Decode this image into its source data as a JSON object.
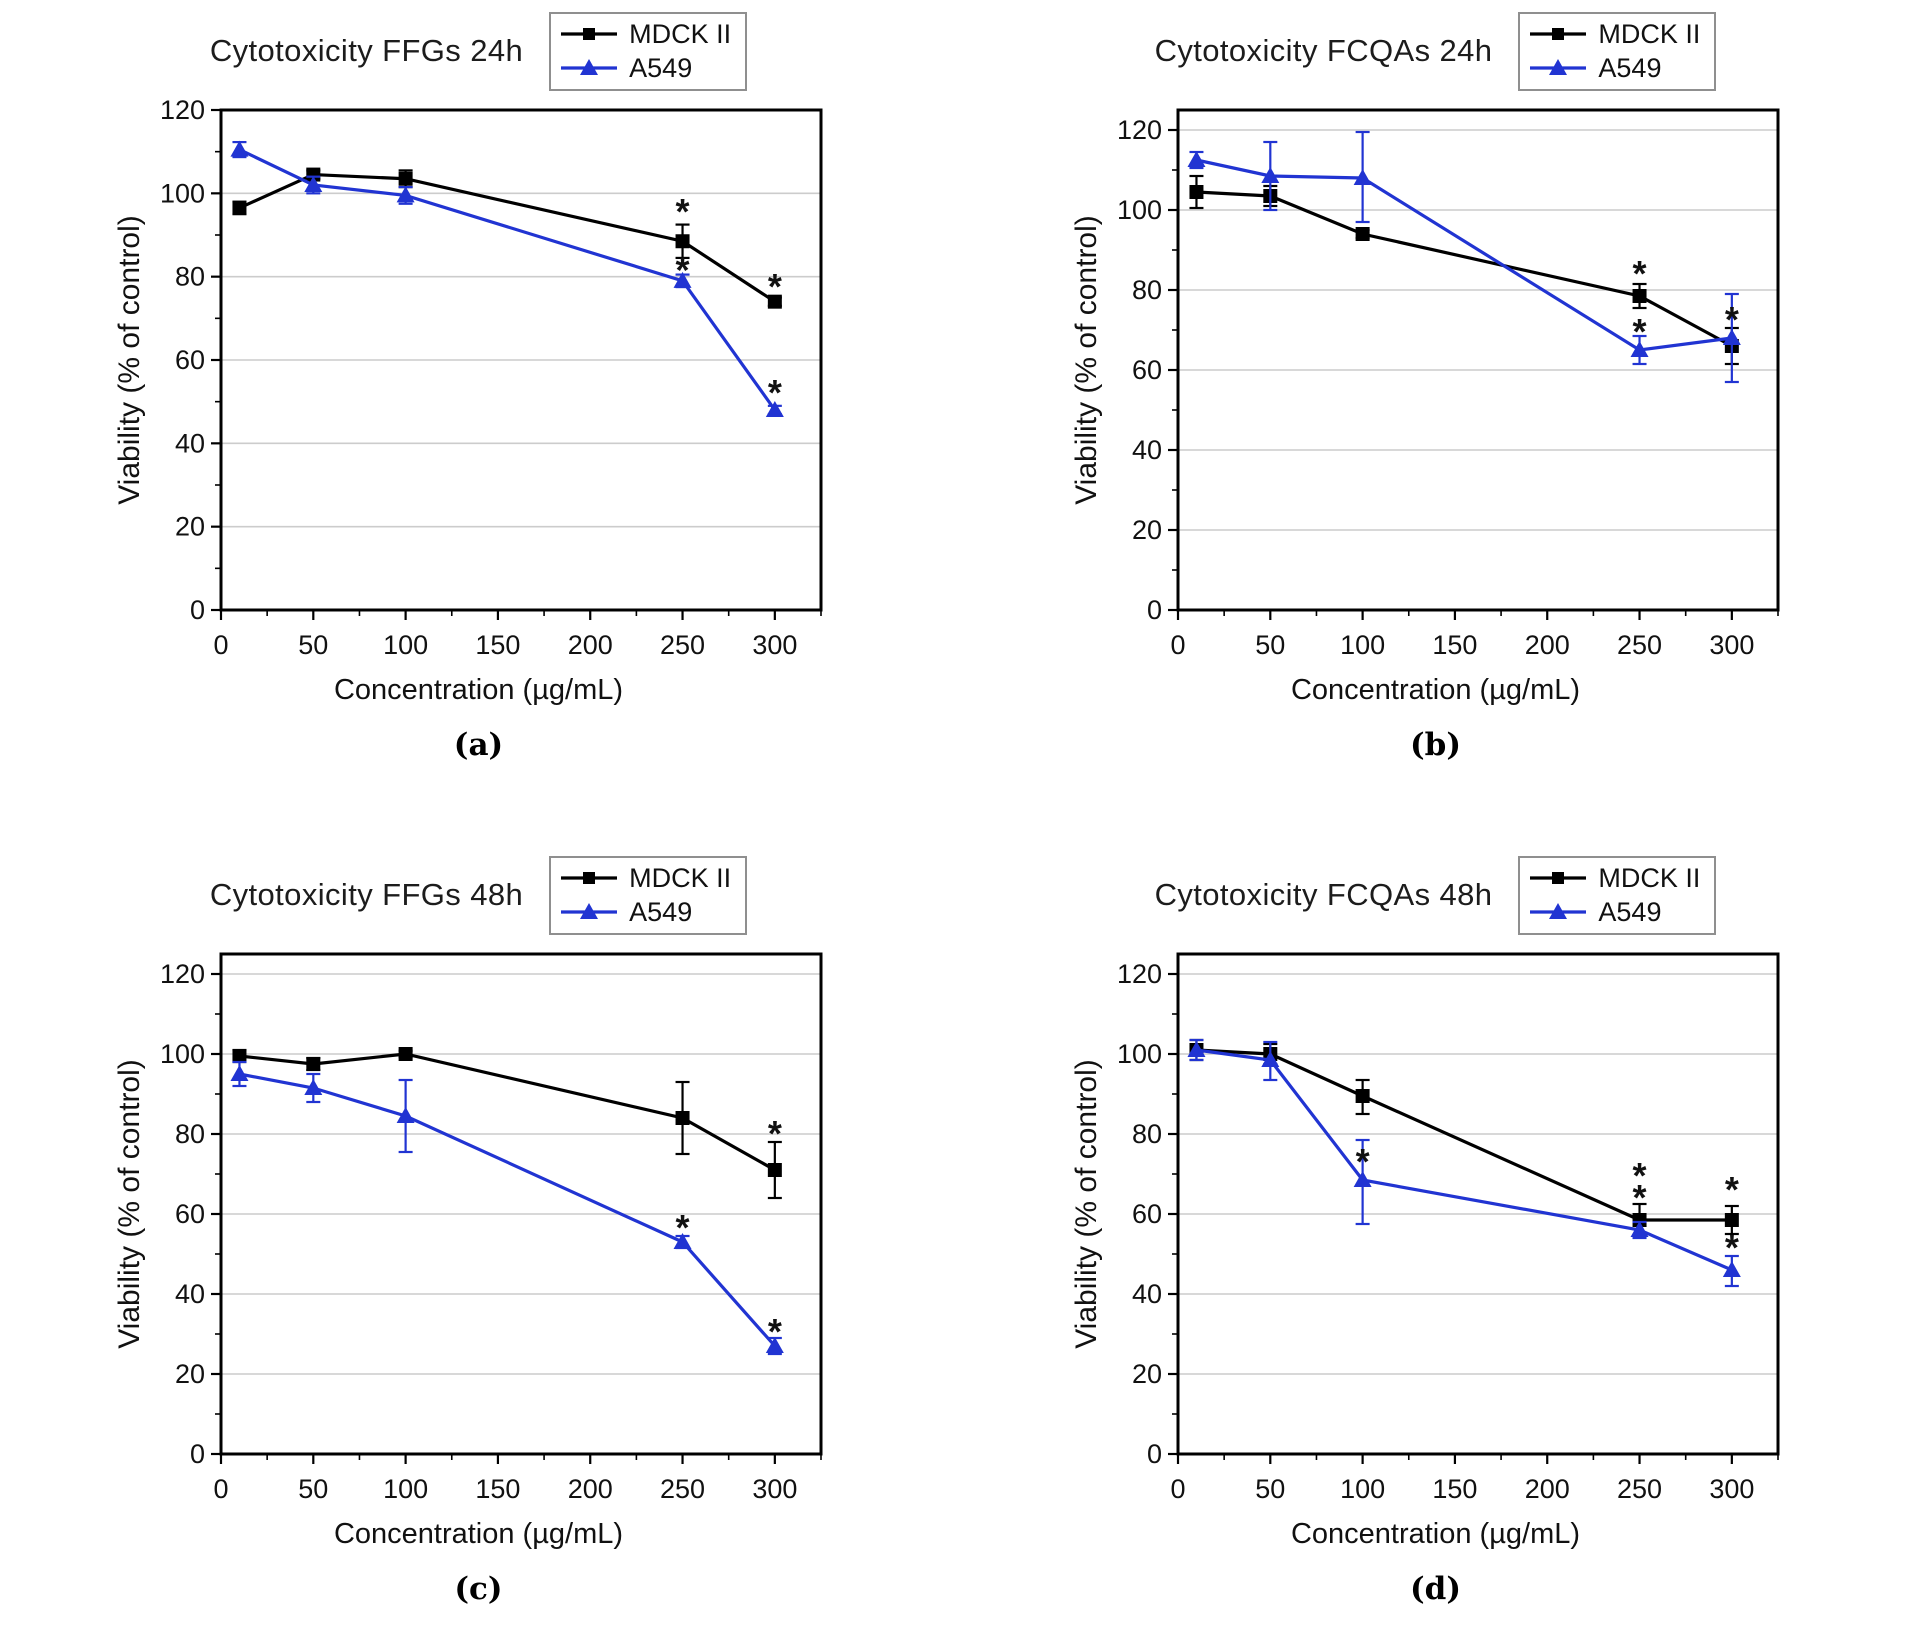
{
  "colors": {
    "mdck": "#000000",
    "a549": "#2134d2",
    "grid": "#cccccc",
    "legend_border": "#8f8f8f"
  },
  "chart_data": [
    {
      "key": "a",
      "type": "line",
      "title": "Cytotoxicity FFGs 24h",
      "panel_caption": "(a)",
      "xlabel": "Concentration (µg/mL)",
      "ylabel": "Viability (% of control)",
      "xlim": [
        0,
        325
      ],
      "ylim": [
        0,
        120
      ],
      "xticks": [
        0,
        50,
        100,
        150,
        200,
        250,
        300
      ],
      "yticks": [
        0,
        20,
        40,
        60,
        80,
        100,
        120
      ],
      "grid": "horizontal",
      "legend_position": "top-right",
      "x": [
        10,
        50,
        100,
        250,
        300
      ],
      "series": [
        {
          "name": "MDCK II",
          "color": "#000000",
          "marker": "square",
          "values": [
            96.5,
            104.5,
            103.5,
            88.5,
            74
          ],
          "errors": [
            [
              1.5,
              1.5
            ],
            [
              1,
              1
            ],
            [
              2,
              2
            ],
            [
              4,
              4
            ],
            [
              1,
              1
            ]
          ]
        },
        {
          "name": "A549",
          "color": "#2134d2",
          "marker": "triangle",
          "values": [
            110.5,
            102,
            99.5,
            79,
            48
          ],
          "errors": [
            [
              1.8,
              1.8
            ],
            [
              2,
              2
            ],
            [
              2,
              2
            ],
            [
              1.5,
              1.5
            ],
            [
              1,
              1
            ]
          ]
        }
      ],
      "annotations": [
        {
          "x": 250,
          "y": 96.5,
          "text": "*"
        },
        {
          "x": 250,
          "y": 82.5,
          "text": "*"
        },
        {
          "x": 300,
          "y": 78.5,
          "text": "*"
        },
        {
          "x": 300,
          "y": 53,
          "text": "*"
        }
      ]
    },
    {
      "key": "b",
      "type": "line",
      "title": "Cytotoxicity FCQAs 24h",
      "panel_caption": "(b)",
      "xlabel": "Concentration (µg/mL)",
      "ylabel": "Viability (% of control)",
      "xlim": [
        0,
        325
      ],
      "ylim": [
        0,
        125
      ],
      "xticks": [
        0,
        50,
        100,
        150,
        200,
        250,
        300
      ],
      "yticks": [
        0,
        20,
        40,
        60,
        80,
        100,
        120
      ],
      "grid": "horizontal",
      "legend_position": "top-right",
      "x": [
        10,
        50,
        100,
        250,
        300
      ],
      "series": [
        {
          "name": "MDCK II",
          "color": "#000000",
          "marker": "square",
          "values": [
            104.5,
            103.5,
            94,
            78.5,
            66
          ],
          "errors": [
            [
              4,
              4
            ],
            [
              2.5,
              2.5
            ],
            [
              1,
              1
            ],
            [
              3,
              3
            ],
            [
              4.5,
              4.5
            ]
          ]
        },
        {
          "name": "A549",
          "color": "#2134d2",
          "marker": "triangle",
          "values": [
            112.5,
            108.5,
            108,
            65,
            68
          ],
          "errors": [
            [
              2,
              2
            ],
            [
              8.5,
              8.5
            ],
            [
              11.5,
              11
            ],
            [
              3.5,
              3.5
            ],
            [
              11,
              11
            ]
          ]
        }
      ],
      "annotations": [
        {
          "x": 250,
          "y": 85,
          "text": "*"
        },
        {
          "x": 250,
          "y": 70.5,
          "text": "*"
        },
        {
          "x": 300,
          "y": 73.5,
          "text": "*"
        }
      ]
    },
    {
      "key": "c",
      "type": "line",
      "title": "Cytotoxicity FFGs 48h",
      "panel_caption": "(c)",
      "xlabel": "Concentration (µg/mL)",
      "ylabel": "Viability (% of control)",
      "xlim": [
        0,
        325
      ],
      "ylim": [
        0,
        125
      ],
      "xticks": [
        0,
        50,
        100,
        150,
        200,
        250,
        300
      ],
      "yticks": [
        0,
        20,
        40,
        60,
        80,
        100,
        120
      ],
      "grid": "horizontal",
      "legend_position": "top-right",
      "x": [
        10,
        50,
        100,
        250,
        300
      ],
      "series": [
        {
          "name": "MDCK II",
          "color": "#000000",
          "marker": "square",
          "values": [
            99.5,
            97.5,
            100,
            84,
            71
          ],
          "errors": [
            [
              1.5,
              1.5
            ],
            [
              1.5,
              1.5
            ],
            [
              0.8,
              0.8
            ],
            [
              9,
              9
            ],
            [
              7,
              7
            ]
          ]
        },
        {
          "name": "A549",
          "color": "#2134d2",
          "marker": "triangle",
          "values": [
            95,
            91.5,
            84.5,
            53,
            27
          ],
          "errors": [
            [
              3,
              3
            ],
            [
              3.5,
              3.5
            ],
            [
              9,
              9
            ],
            [
              1.5,
              1.5
            ],
            [
              2,
              2
            ]
          ]
        }
      ],
      "annotations": [
        {
          "x": 250,
          "y": 57.5,
          "text": "*"
        },
        {
          "x": 300,
          "y": 81,
          "text": "*"
        },
        {
          "x": 300,
          "y": 31.5,
          "text": "*"
        }
      ]
    },
    {
      "key": "d",
      "type": "line",
      "title": "Cytotoxicity FCQAs 48h",
      "panel_caption": "(d)",
      "xlabel": "Concentration (µg/mL)",
      "ylabel": "Viability (% of control)",
      "xlim": [
        0,
        325
      ],
      "ylim": [
        0,
        125
      ],
      "xticks": [
        0,
        50,
        100,
        150,
        200,
        250,
        300
      ],
      "yticks": [
        0,
        20,
        40,
        60,
        80,
        100,
        120
      ],
      "grid": "horizontal",
      "legend_position": "top-right",
      "x": [
        10,
        50,
        100,
        250,
        300
      ],
      "series": [
        {
          "name": "MDCK II",
          "color": "#000000",
          "marker": "square",
          "values": [
            101,
            100,
            89.5,
            58.5,
            58.5
          ],
          "errors": [
            [
              2.5,
              2.5
            ],
            [
              2.5,
              2.5
            ],
            [
              4,
              4.5
            ],
            [
              4,
              4
            ],
            [
              3.5,
              3.5
            ]
          ]
        },
        {
          "name": "A549",
          "color": "#2134d2",
          "marker": "triangle",
          "values": [
            101,
            98.5,
            68.5,
            56,
            46
          ],
          "errors": [
            [
              2.5,
              2.5
            ],
            [
              4.5,
              5
            ],
            [
              10,
              11
            ],
            [
              2,
              2
            ],
            [
              3.5,
              4
            ]
          ]
        }
      ],
      "annotations": [
        {
          "x": 100,
          "y": 74,
          "text": "*"
        },
        {
          "x": 250,
          "y": 70.5,
          "text": "*"
        },
        {
          "x": 250,
          "y": 65,
          "text": "*"
        },
        {
          "x": 300,
          "y": 67,
          "text": "*"
        },
        {
          "x": 300,
          "y": 52.5,
          "text": "*"
        }
      ]
    }
  ]
}
